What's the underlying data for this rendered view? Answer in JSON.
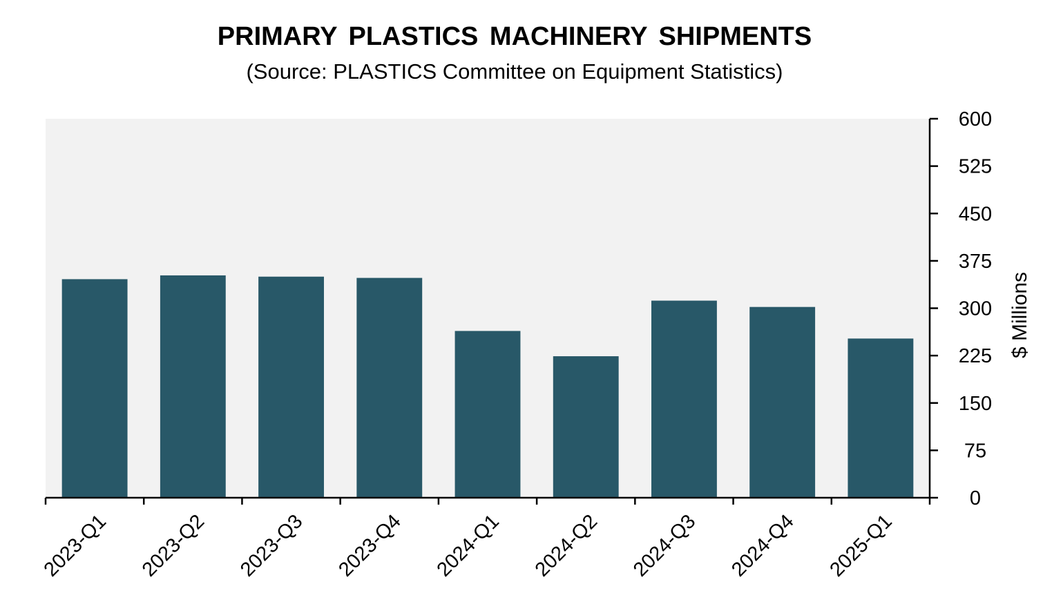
{
  "chart_data": {
    "type": "bar",
    "title": "PRIMARY PLASTICS MACHINERY SHIPMENTS",
    "subtitle": "(Source: PLASTICS Committee on Equipment Statistics)",
    "categories": [
      "2023-Q1",
      "2023-Q2",
      "2023-Q3",
      "2023-Q4",
      "2024-Q1",
      "2024-Q2",
      "2024-Q3",
      "2024-Q4",
      "2025-Q1"
    ],
    "values": [
      346,
      352,
      350,
      348,
      264,
      224,
      312,
      302,
      252
    ],
    "xlabel": "",
    "ylabel": "$ Millions",
    "ylim": [
      0,
      600
    ],
    "yticks": [
      0,
      75,
      150,
      225,
      300,
      375,
      450,
      525,
      600
    ],
    "y_axis_position": "right",
    "grid": false,
    "legend": "none",
    "colors": {
      "bar": "#285868",
      "plot_background": "#f2f2f2",
      "axis": "#000000"
    }
  }
}
